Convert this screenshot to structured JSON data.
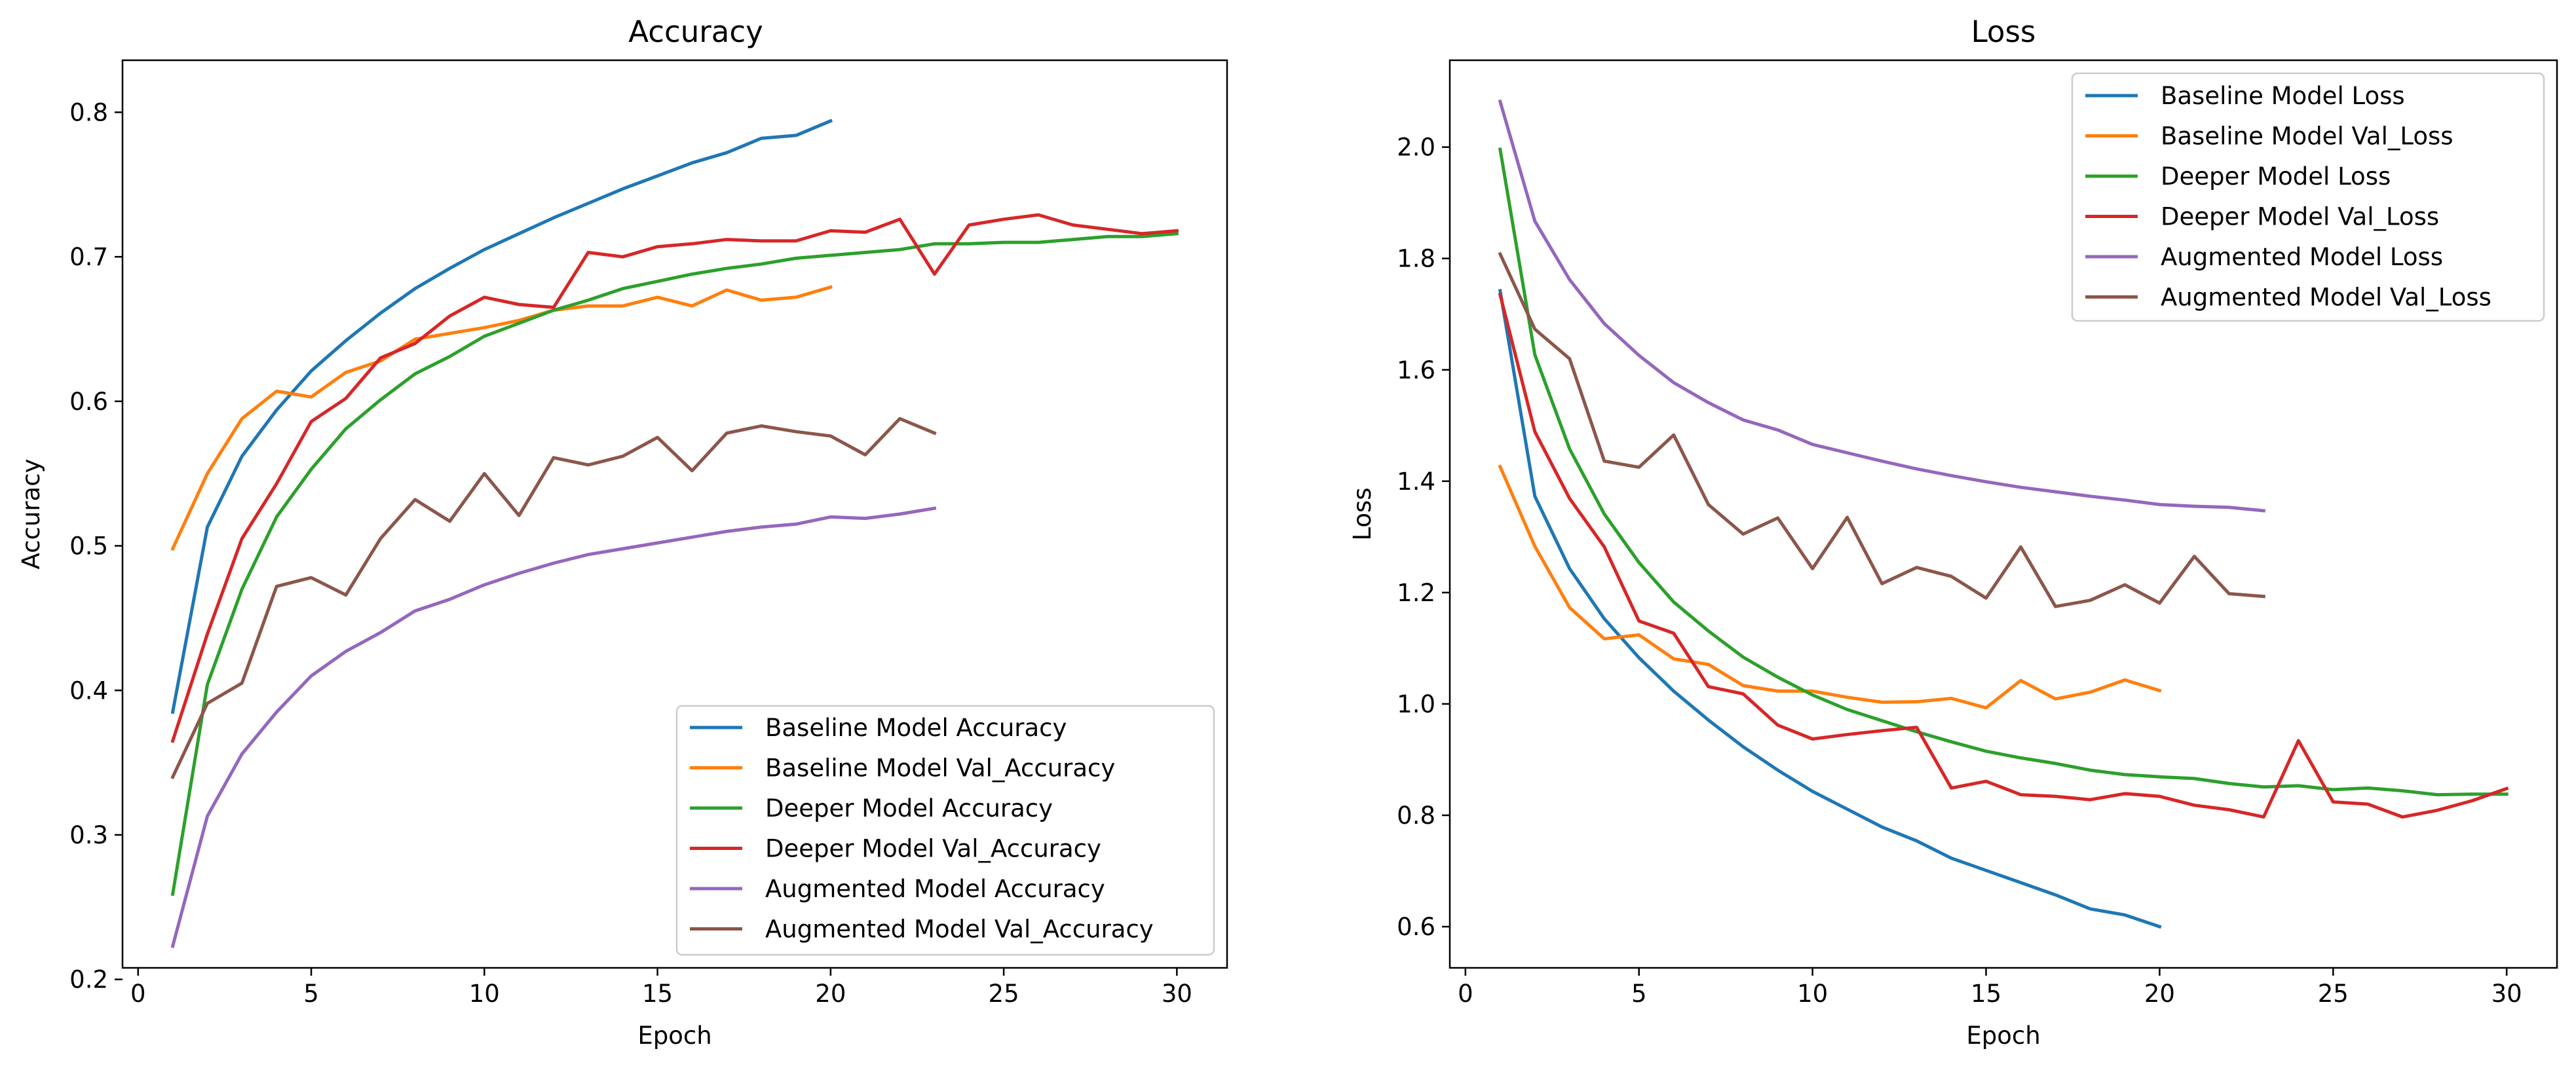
{
  "colors": {
    "blue": "#1f77b4",
    "orange": "#ff7f0e",
    "green": "#2ca02c",
    "red": "#d62728",
    "purple": "#9467bd",
    "brown": "#8c564b"
  },
  "chart_data": [
    {
      "type": "line",
      "title": "Accuracy",
      "xlabel": "Epoch",
      "ylabel": "Accuracy",
      "xlim": [
        -0.45,
        31.45
      ],
      "ylim": [
        0.208,
        0.836
      ],
      "xticks": [
        0,
        5,
        10,
        15,
        20,
        25,
        30
      ],
      "yticks": [
        0.2,
        0.3,
        0.4,
        0.5,
        0.6,
        0.7,
        0.8
      ],
      "grid": false,
      "legend_position": "lower-right",
      "series": [
        {
          "name": "Baseline Model Accuracy",
          "color": "#1f77b4",
          "x": [
            1,
            2,
            3,
            4,
            5,
            6,
            7,
            8,
            9,
            10,
            11,
            12,
            13,
            14,
            15,
            16,
            17,
            18,
            19,
            20
          ],
          "y": [
            0.385,
            0.513,
            0.562,
            0.594,
            0.621,
            0.642,
            0.661,
            0.678,
            0.692,
            0.705,
            0.716,
            0.727,
            0.737,
            0.747,
            0.756,
            0.765,
            0.772,
            0.782,
            0.784,
            0.794
          ]
        },
        {
          "name": "Baseline Model Val_Accuracy",
          "color": "#ff7f0e",
          "x": [
            1,
            2,
            3,
            4,
            5,
            6,
            7,
            8,
            9,
            10,
            11,
            12,
            13,
            14,
            15,
            16,
            17,
            18,
            19,
            20
          ],
          "y": [
            0.498,
            0.55,
            0.588,
            0.607,
            0.603,
            0.62,
            0.628,
            0.643,
            0.647,
            0.651,
            0.656,
            0.663,
            0.666,
            0.666,
            0.672,
            0.666,
            0.677,
            0.67,
            0.672,
            0.679
          ]
        },
        {
          "name": "Deeper Model Accuracy",
          "color": "#2ca02c",
          "x": [
            1,
            2,
            3,
            4,
            5,
            6,
            7,
            8,
            9,
            10,
            11,
            12,
            13,
            14,
            15,
            16,
            17,
            18,
            19,
            20,
            21,
            22,
            23,
            24,
            25,
            26,
            27,
            28,
            29,
            30
          ],
          "y": [
            0.259,
            0.404,
            0.47,
            0.52,
            0.553,
            0.581,
            0.601,
            0.619,
            0.631,
            0.645,
            0.654,
            0.663,
            0.67,
            0.678,
            0.683,
            0.688,
            0.692,
            0.695,
            0.699,
            0.701,
            0.703,
            0.705,
            0.709,
            0.709,
            0.71,
            0.71,
            0.712,
            0.714,
            0.714,
            0.716
          ]
        },
        {
          "name": "Deeper Model Val_Accuracy",
          "color": "#d62728",
          "x": [
            1,
            2,
            3,
            4,
            5,
            6,
            7,
            8,
            9,
            10,
            11,
            12,
            13,
            14,
            15,
            16,
            17,
            18,
            19,
            20,
            21,
            22,
            23,
            24,
            25,
            26,
            27,
            28,
            29,
            30
          ],
          "y": [
            0.365,
            0.439,
            0.505,
            0.543,
            0.586,
            0.602,
            0.63,
            0.64,
            0.659,
            0.672,
            0.667,
            0.665,
            0.703,
            0.7,
            0.707,
            0.709,
            0.712,
            0.711,
            0.711,
            0.718,
            0.717,
            0.726,
            0.688,
            0.722,
            0.726,
            0.729,
            0.722,
            0.719,
            0.716,
            0.718
          ]
        },
        {
          "name": "Augmented Model Accuracy",
          "color": "#9467bd",
          "x": [
            1,
            2,
            3,
            4,
            5,
            6,
            7,
            8,
            9,
            10,
            11,
            12,
            13,
            14,
            15,
            16,
            17,
            18,
            19,
            20,
            21,
            22,
            23
          ],
          "y": [
            0.223,
            0.313,
            0.356,
            0.385,
            0.41,
            0.427,
            0.44,
            0.455,
            0.463,
            0.473,
            0.481,
            0.488,
            0.494,
            0.498,
            0.502,
            0.506,
            0.51,
            0.513,
            0.515,
            0.52,
            0.519,
            0.522,
            0.526
          ]
        },
        {
          "name": "Augmented Model Val_Accuracy",
          "color": "#8c564b",
          "x": [
            1,
            2,
            3,
            4,
            5,
            6,
            7,
            8,
            9,
            10,
            11,
            12,
            13,
            14,
            15,
            16,
            17,
            18,
            19,
            20,
            21,
            22,
            23
          ],
          "y": [
            0.34,
            0.391,
            0.405,
            0.472,
            0.478,
            0.466,
            0.505,
            0.532,
            0.517,
            0.55,
            0.521,
            0.561,
            0.556,
            0.562,
            0.575,
            0.552,
            0.578,
            0.583,
            0.579,
            0.576,
            0.563,
            0.588,
            0.578
          ]
        }
      ]
    },
    {
      "type": "line",
      "title": "Loss",
      "xlabel": "Epoch",
      "ylabel": "Loss",
      "xlim": [
        -0.45,
        31.45
      ],
      "ylim": [
        0.526,
        2.156
      ],
      "xticks": [
        0,
        5,
        10,
        15,
        20,
        25,
        30
      ],
      "yticks": [
        0.6,
        0.8,
        1.0,
        1.2,
        1.4,
        1.6,
        1.8,
        2.0
      ],
      "grid": false,
      "legend_position": "upper-right",
      "series": [
        {
          "name": "Baseline Model Loss",
          "color": "#1f77b4",
          "x": [
            1,
            2,
            3,
            4,
            5,
            6,
            7,
            8,
            9,
            10,
            11,
            12,
            13,
            14,
            15,
            16,
            17,
            18,
            19,
            20
          ],
          "y": [
            1.742,
            1.373,
            1.243,
            1.153,
            1.083,
            1.023,
            0.971,
            0.923,
            0.881,
            0.843,
            0.811,
            0.779,
            0.754,
            0.723,
            0.701,
            0.679,
            0.657,
            0.632,
            0.621,
            0.6
          ]
        },
        {
          "name": "Baseline Model Val_Loss",
          "color": "#ff7f0e",
          "x": [
            1,
            2,
            3,
            4,
            5,
            6,
            7,
            8,
            9,
            10,
            11,
            12,
            13,
            14,
            15,
            16,
            17,
            18,
            19,
            20
          ],
          "y": [
            1.426,
            1.283,
            1.173,
            1.117,
            1.124,
            1.081,
            1.071,
            1.033,
            1.023,
            1.023,
            1.012,
            1.003,
            1.004,
            1.01,
            0.993,
            1.042,
            1.009,
            1.021,
            1.043,
            1.024
          ]
        },
        {
          "name": "Deeper Model Loss",
          "color": "#2ca02c",
          "x": [
            1,
            2,
            3,
            4,
            5,
            6,
            7,
            8,
            9,
            10,
            11,
            12,
            13,
            14,
            15,
            16,
            17,
            18,
            19,
            20,
            21,
            22,
            23,
            24,
            25,
            26,
            27,
            28,
            29,
            30
          ],
          "y": [
            1.996,
            1.627,
            1.458,
            1.341,
            1.254,
            1.183,
            1.131,
            1.084,
            1.048,
            1.016,
            0.99,
            0.97,
            0.95,
            0.932,
            0.915,
            0.903,
            0.893,
            0.881,
            0.873,
            0.869,
            0.866,
            0.857,
            0.851,
            0.853,
            0.846,
            0.849,
            0.844,
            0.837,
            0.838,
            0.838
          ]
        },
        {
          "name": "Deeper Model Val_Loss",
          "color": "#d62728",
          "x": [
            1,
            2,
            3,
            4,
            5,
            6,
            7,
            8,
            9,
            10,
            11,
            12,
            13,
            14,
            15,
            16,
            17,
            18,
            19,
            20,
            21,
            22,
            23,
            24,
            25,
            26,
            27,
            28,
            29,
            30
          ],
          "y": [
            1.735,
            1.489,
            1.369,
            1.282,
            1.149,
            1.127,
            1.031,
            1.018,
            0.962,
            0.937,
            0.945,
            0.952,
            0.958,
            0.849,
            0.861,
            0.837,
            0.834,
            0.828,
            0.839,
            0.834,
            0.818,
            0.81,
            0.797,
            0.934,
            0.824,
            0.82,
            0.797,
            0.809,
            0.826,
            0.848
          ]
        },
        {
          "name": "Augmented Model Loss",
          "color": "#9467bd",
          "x": [
            1,
            2,
            3,
            4,
            5,
            6,
            7,
            8,
            9,
            10,
            11,
            12,
            13,
            14,
            15,
            16,
            17,
            18,
            19,
            20,
            21,
            22,
            23
          ],
          "y": [
            2.082,
            1.867,
            1.762,
            1.683,
            1.626,
            1.577,
            1.541,
            1.51,
            1.492,
            1.466,
            1.451,
            1.436,
            1.422,
            1.41,
            1.399,
            1.389,
            1.381,
            1.373,
            1.366,
            1.358,
            1.355,
            1.353,
            1.347
          ]
        },
        {
          "name": "Augmented Model Val_Loss",
          "color": "#8c564b",
          "x": [
            1,
            2,
            3,
            4,
            5,
            6,
            7,
            8,
            9,
            10,
            11,
            12,
            13,
            14,
            15,
            16,
            17,
            18,
            19,
            20,
            21,
            22,
            23
          ],
          "y": [
            1.808,
            1.673,
            1.62,
            1.436,
            1.425,
            1.483,
            1.358,
            1.305,
            1.334,
            1.243,
            1.335,
            1.216,
            1.245,
            1.229,
            1.19,
            1.282,
            1.175,
            1.186,
            1.214,
            1.181,
            1.265,
            1.198,
            1.193
          ]
        }
      ]
    }
  ]
}
